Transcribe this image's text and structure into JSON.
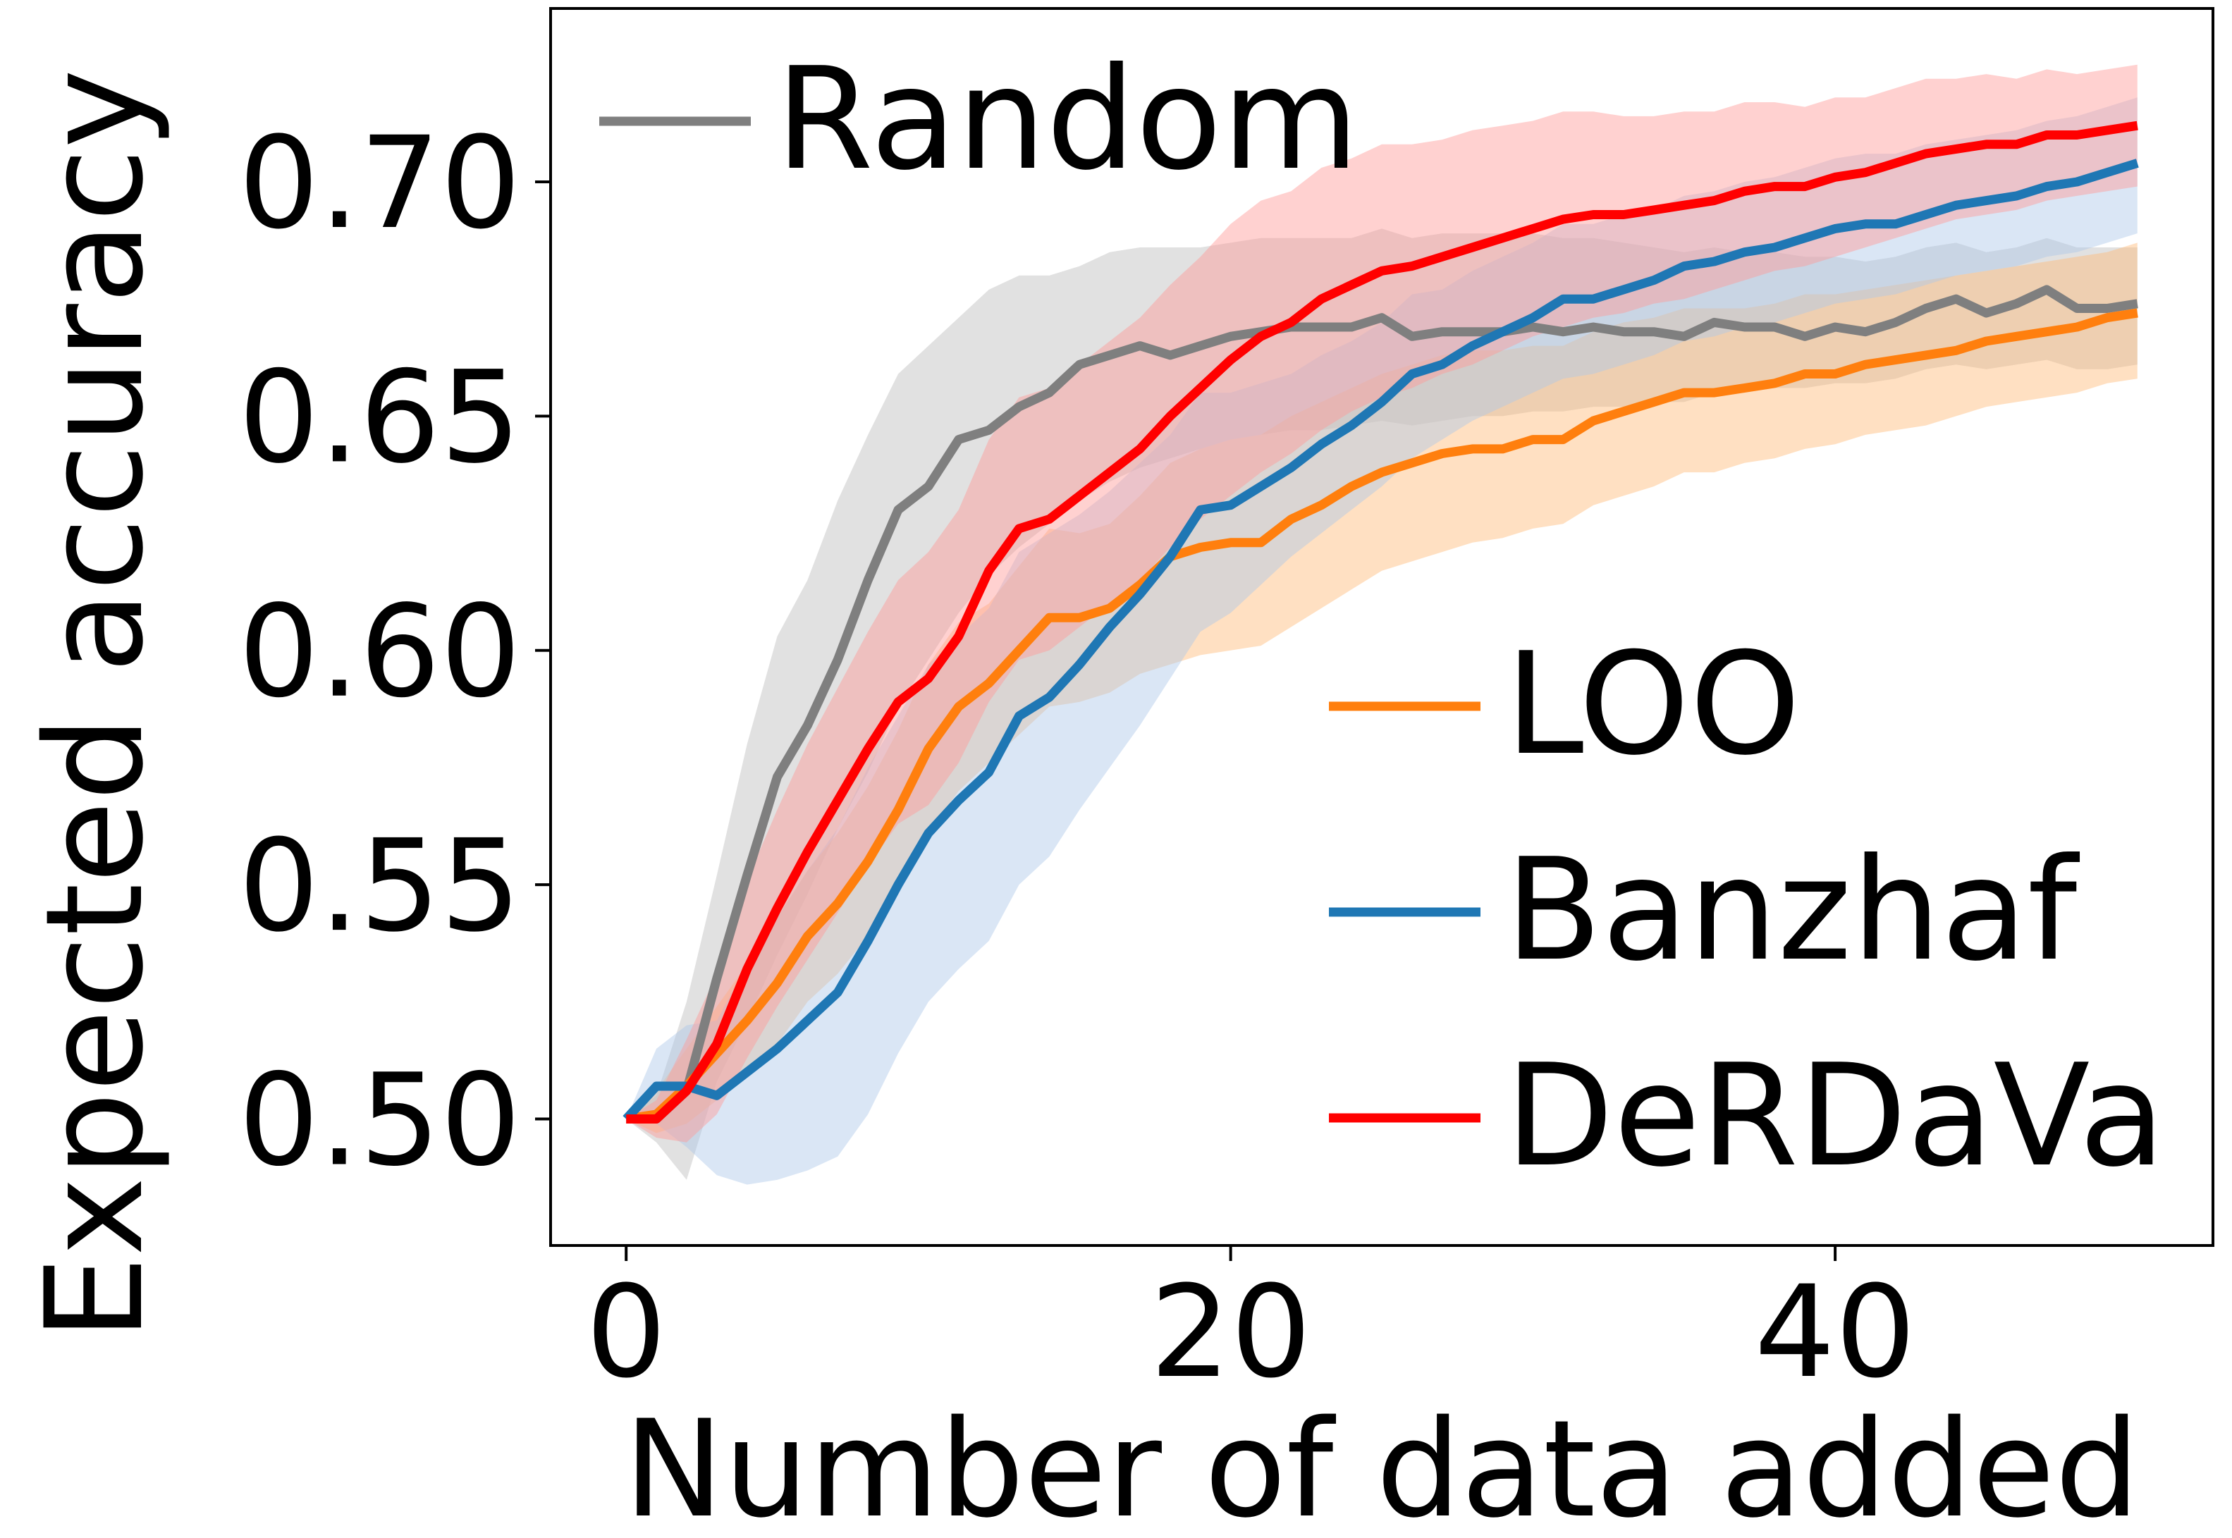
{
  "chart_data": {
    "type": "line",
    "title": "",
    "xlabel": "Number of data added",
    "ylabel": "Expected accuracy",
    "xlim": [
      -2.5,
      52.5
    ],
    "ylim": [
      0.473,
      0.737
    ],
    "xticks": [
      0,
      20,
      40
    ],
    "xtick_labels": [
      "0",
      "20",
      "40"
    ],
    "yticks": [
      0.5,
      0.55,
      0.6,
      0.65,
      0.7
    ],
    "ytick_labels": [
      "0.50",
      "0.55",
      "0.60",
      "0.65",
      "0.70"
    ],
    "grid": false,
    "x": [
      0,
      1,
      2,
      3,
      4,
      5,
      6,
      7,
      8,
      9,
      10,
      11,
      12,
      13,
      14,
      15,
      16,
      17,
      18,
      19,
      20,
      21,
      22,
      23,
      24,
      25,
      26,
      27,
      28,
      29,
      30,
      31,
      32,
      33,
      34,
      35,
      36,
      37,
      38,
      39,
      40,
      41,
      42,
      43,
      44,
      45,
      46,
      47,
      48,
      49,
      50
    ],
    "series": [
      {
        "name": "Random",
        "color": "#7f7f7f",
        "band_color": "#bdbdbd",
        "values": [
          0.5,
          0.5,
          0.506,
          0.53,
          0.552,
          0.573,
          0.584,
          0.598,
          0.615,
          0.63,
          0.635,
          0.645,
          0.647,
          0.652,
          0.655,
          0.661,
          0.663,
          0.665,
          0.663,
          0.665,
          0.667,
          0.668,
          0.669,
          0.669,
          0.669,
          0.671,
          0.667,
          0.668,
          0.668,
          0.668,
          0.669,
          0.668,
          0.669,
          0.668,
          0.668,
          0.667,
          0.67,
          0.669,
          0.669,
          0.667,
          0.669,
          0.668,
          0.67,
          0.673,
          0.675,
          0.672,
          0.674,
          0.677,
          0.673,
          0.673,
          0.674
        ],
        "lower": [
          0.5,
          0.495,
          0.487,
          0.508,
          0.521,
          0.535,
          0.548,
          0.562,
          0.574,
          0.588,
          0.598,
          0.608,
          0.616,
          0.622,
          0.627,
          0.632,
          0.636,
          0.639,
          0.641,
          0.643,
          0.645,
          0.646,
          0.647,
          0.647,
          0.648,
          0.649,
          0.648,
          0.649,
          0.65,
          0.65,
          0.651,
          0.651,
          0.652,
          0.652,
          0.653,
          0.653,
          0.655,
          0.655,
          0.656,
          0.656,
          0.657,
          0.657,
          0.658,
          0.66,
          0.661,
          0.66,
          0.661,
          0.662,
          0.66,
          0.66,
          0.661
        ],
        "upper": [
          0.5,
          0.505,
          0.525,
          0.552,
          0.58,
          0.603,
          0.615,
          0.632,
          0.646,
          0.659,
          0.665,
          0.671,
          0.677,
          0.68,
          0.68,
          0.682,
          0.685,
          0.686,
          0.686,
          0.686,
          0.687,
          0.688,
          0.688,
          0.688,
          0.688,
          0.69,
          0.688,
          0.689,
          0.689,
          0.689,
          0.689,
          0.688,
          0.688,
          0.687,
          0.686,
          0.685,
          0.686,
          0.685,
          0.685,
          0.684,
          0.684,
          0.683,
          0.684,
          0.686,
          0.687,
          0.685,
          0.686,
          0.688,
          0.686,
          0.686,
          0.686
        ]
      },
      {
        "name": "LOO",
        "color": "#ff7f0e",
        "band_color": "#ffbb78",
        "values": [
          0.5,
          0.501,
          0.507,
          0.514,
          0.521,
          0.529,
          0.539,
          0.546,
          0.555,
          0.566,
          0.579,
          0.588,
          0.593,
          0.6,
          0.607,
          0.607,
          0.609,
          0.614,
          0.62,
          0.622,
          0.623,
          0.623,
          0.628,
          0.631,
          0.635,
          0.638,
          0.64,
          0.642,
          0.643,
          0.643,
          0.645,
          0.645,
          0.649,
          0.651,
          0.653,
          0.655,
          0.655,
          0.656,
          0.657,
          0.659,
          0.659,
          0.661,
          0.662,
          0.663,
          0.664,
          0.666,
          0.667,
          0.668,
          0.669,
          0.671,
          0.672
        ],
        "lower": [
          0.5,
          0.497,
          0.499,
          0.504,
          0.509,
          0.516,
          0.525,
          0.531,
          0.539,
          0.549,
          0.561,
          0.57,
          0.576,
          0.582,
          0.588,
          0.589,
          0.591,
          0.595,
          0.597,
          0.599,
          0.6,
          0.601,
          0.605,
          0.609,
          0.613,
          0.617,
          0.619,
          0.621,
          0.623,
          0.624,
          0.626,
          0.627,
          0.631,
          0.633,
          0.635,
          0.638,
          0.638,
          0.64,
          0.641,
          0.643,
          0.644,
          0.646,
          0.647,
          0.648,
          0.65,
          0.652,
          0.653,
          0.654,
          0.655,
          0.657,
          0.658
        ],
        "upper": [
          0.5,
          0.506,
          0.515,
          0.524,
          0.533,
          0.543,
          0.553,
          0.561,
          0.571,
          0.583,
          0.597,
          0.606,
          0.61,
          0.618,
          0.626,
          0.625,
          0.627,
          0.633,
          0.64,
          0.643,
          0.645,
          0.646,
          0.65,
          0.653,
          0.656,
          0.659,
          0.661,
          0.663,
          0.664,
          0.664,
          0.665,
          0.665,
          0.668,
          0.67,
          0.671,
          0.673,
          0.673,
          0.673,
          0.674,
          0.676,
          0.676,
          0.677,
          0.678,
          0.679,
          0.68,
          0.681,
          0.682,
          0.683,
          0.684,
          0.685,
          0.687
        ]
      },
      {
        "name": "Banzhaf",
        "color": "#1f77b4",
        "band_color": "#aec7e8",
        "values": [
          0.5,
          0.507,
          0.507,
          0.505,
          0.51,
          0.515,
          0.521,
          0.527,
          0.538,
          0.55,
          0.561,
          0.568,
          0.574,
          0.586,
          0.59,
          0.597,
          0.605,
          0.612,
          0.62,
          0.63,
          0.631,
          0.635,
          0.639,
          0.644,
          0.648,
          0.653,
          0.659,
          0.661,
          0.665,
          0.668,
          0.671,
          0.675,
          0.675,
          0.677,
          0.679,
          0.682,
          0.683,
          0.685,
          0.686,
          0.688,
          0.69,
          0.691,
          0.691,
          0.693,
          0.695,
          0.696,
          0.697,
          0.699,
          0.7,
          0.702,
          0.704
        ],
        "lower": [
          0.5,
          0.499,
          0.494,
          0.488,
          0.486,
          0.487,
          0.489,
          0.492,
          0.501,
          0.514,
          0.525,
          0.532,
          0.538,
          0.55,
          0.556,
          0.566,
          0.575,
          0.584,
          0.594,
          0.604,
          0.608,
          0.614,
          0.62,
          0.625,
          0.63,
          0.635,
          0.641,
          0.645,
          0.649,
          0.652,
          0.655,
          0.658,
          0.659,
          0.661,
          0.663,
          0.666,
          0.667,
          0.669,
          0.67,
          0.672,
          0.674,
          0.675,
          0.676,
          0.678,
          0.68,
          0.681,
          0.682,
          0.684,
          0.685,
          0.687,
          0.689
        ],
        "upper": [
          0.5,
          0.515,
          0.52,
          0.521,
          0.533,
          0.543,
          0.553,
          0.562,
          0.575,
          0.586,
          0.597,
          0.603,
          0.609,
          0.621,
          0.625,
          0.629,
          0.634,
          0.64,
          0.646,
          0.655,
          0.655,
          0.657,
          0.659,
          0.663,
          0.666,
          0.67,
          0.676,
          0.677,
          0.681,
          0.684,
          0.687,
          0.691,
          0.691,
          0.693,
          0.694,
          0.697,
          0.698,
          0.7,
          0.701,
          0.703,
          0.705,
          0.706,
          0.706,
          0.708,
          0.709,
          0.71,
          0.711,
          0.713,
          0.714,
          0.716,
          0.718
        ]
      },
      {
        "name": "DeRDaVa",
        "color": "#ff0000",
        "band_color": "#ff9896",
        "values": [
          0.5,
          0.5,
          0.506,
          0.516,
          0.532,
          0.545,
          0.557,
          0.568,
          0.579,
          0.589,
          0.594,
          0.603,
          0.617,
          0.626,
          0.628,
          0.633,
          0.638,
          0.643,
          0.65,
          0.656,
          0.662,
          0.667,
          0.67,
          0.675,
          0.678,
          0.681,
          0.682,
          0.684,
          0.686,
          0.688,
          0.69,
          0.692,
          0.693,
          0.693,
          0.694,
          0.695,
          0.696,
          0.698,
          0.699,
          0.699,
          0.701,
          0.702,
          0.704,
          0.706,
          0.707,
          0.708,
          0.708,
          0.71,
          0.71,
          0.711,
          0.712
        ],
        "lower": [
          0.5,
          0.496,
          0.495,
          0.501,
          0.513,
          0.524,
          0.534,
          0.544,
          0.554,
          0.563,
          0.567,
          0.576,
          0.589,
          0.598,
          0.6,
          0.605,
          0.61,
          0.615,
          0.622,
          0.628,
          0.633,
          0.638,
          0.642,
          0.647,
          0.651,
          0.654,
          0.656,
          0.659,
          0.661,
          0.664,
          0.667,
          0.669,
          0.671,
          0.672,
          0.674,
          0.675,
          0.677,
          0.679,
          0.681,
          0.682,
          0.684,
          0.686,
          0.688,
          0.69,
          0.692,
          0.693,
          0.694,
          0.696,
          0.697,
          0.698,
          0.699
        ],
        "upper": [
          0.5,
          0.504,
          0.517,
          0.531,
          0.551,
          0.566,
          0.58,
          0.592,
          0.604,
          0.615,
          0.621,
          0.63,
          0.645,
          0.654,
          0.656,
          0.661,
          0.666,
          0.671,
          0.678,
          0.684,
          0.691,
          0.696,
          0.698,
          0.703,
          0.705,
          0.708,
          0.708,
          0.709,
          0.711,
          0.712,
          0.713,
          0.715,
          0.715,
          0.714,
          0.714,
          0.715,
          0.715,
          0.717,
          0.717,
          0.716,
          0.718,
          0.718,
          0.72,
          0.722,
          0.722,
          0.723,
          0.722,
          0.724,
          0.723,
          0.724,
          0.725
        ]
      }
    ],
    "legends": [
      {
        "position": "upper-left",
        "entries": [
          "Random"
        ]
      },
      {
        "position": "lower-right",
        "entries": [
          "LOO",
          "Banzhaf",
          "DeRDaVa"
        ]
      }
    ]
  }
}
